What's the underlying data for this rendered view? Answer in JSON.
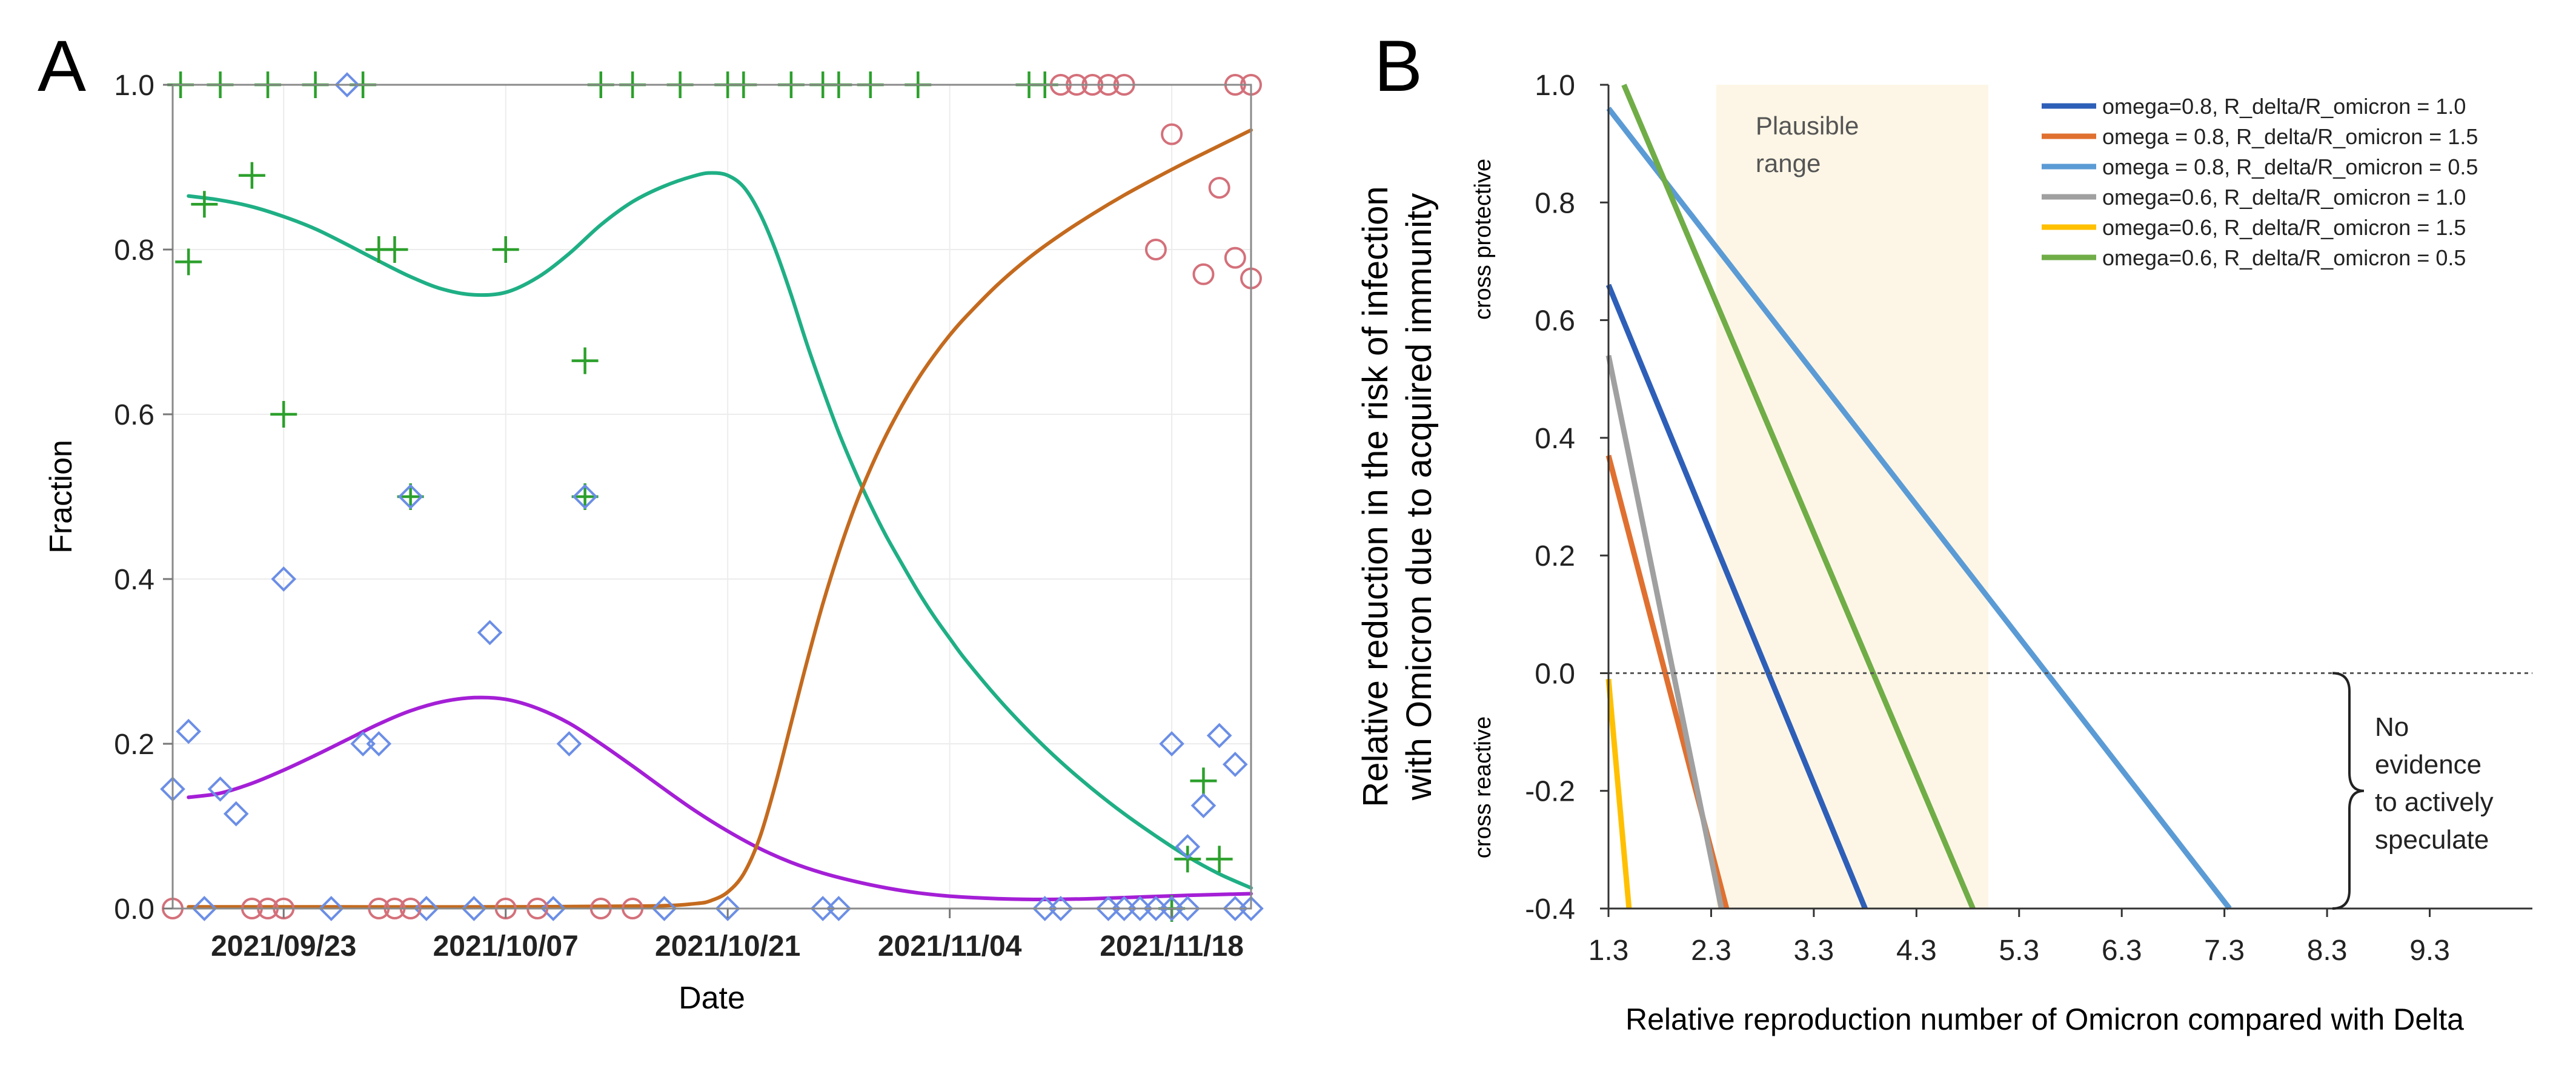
{
  "panels": {
    "a": {
      "letter": "A"
    },
    "b": {
      "letter": "B"
    }
  },
  "colors": {
    "green": "#1faf85",
    "purple": "#a41fd6",
    "orange": "#c46a1e",
    "marker_green": "#2ca02c",
    "marker_blue": "#6b8ee6",
    "marker_red": "#d4707a",
    "band": "#fdf6e6"
  },
  "chart_data": [
    {
      "id": "panel-a",
      "type": "scatter",
      "title": "",
      "xlabel": "Date",
      "ylabel": "Fraction",
      "x_unit": "days since 2021/09/16",
      "xlim": [
        0,
        68
      ],
      "ylim": [
        0,
        1
      ],
      "x_ticks": [
        {
          "x": 7,
          "label": "2021/09/23"
        },
        {
          "x": 21,
          "label": "2021/10/07"
        },
        {
          "x": 35,
          "label": "2021/10/21"
        },
        {
          "x": 49,
          "label": "2021/11/04"
        },
        {
          "x": 63,
          "label": "2021/11/18"
        }
      ],
      "y_ticks": [
        {
          "y": 0.0,
          "label": "0.0"
        },
        {
          "y": 0.2,
          "label": "0.2"
        },
        {
          "y": 0.4,
          "label": "0.4"
        },
        {
          "y": 0.6,
          "label": "0.6"
        },
        {
          "y": 0.8,
          "label": "0.8"
        },
        {
          "y": 1.0,
          "label": "1.0"
        }
      ],
      "curves": [
        {
          "name": "green-fit",
          "color": "#1faf85",
          "x": [
            1,
            3,
            5,
            7,
            9,
            11,
            13,
            15,
            17,
            19,
            21,
            23,
            25,
            27,
            29,
            31,
            33,
            34,
            35,
            36,
            37,
            38,
            39,
            40,
            41,
            42,
            43,
            44,
            45,
            46,
            47,
            48,
            49,
            50,
            52,
            54,
            56,
            58,
            60,
            62,
            64,
            66,
            68
          ],
          "y": [
            0.865,
            0.86,
            0.852,
            0.84,
            0.825,
            0.806,
            0.786,
            0.767,
            0.752,
            0.745,
            0.748,
            0.766,
            0.795,
            0.83,
            0.858,
            0.877,
            0.89,
            0.893,
            0.89,
            0.876,
            0.845,
            0.8,
            0.745,
            0.685,
            0.63,
            0.578,
            0.532,
            0.49,
            0.452,
            0.418,
            0.385,
            0.355,
            0.328,
            0.302,
            0.256,
            0.215,
            0.178,
            0.145,
            0.115,
            0.088,
            0.063,
            0.042,
            0.025
          ]
        },
        {
          "name": "purple-fit",
          "color": "#a41fd6",
          "x": [
            1,
            3,
            5,
            7,
            9,
            11,
            13,
            15,
            17,
            19,
            21,
            23,
            25,
            27,
            29,
            31,
            33,
            35,
            37,
            39,
            41,
            43,
            45,
            47,
            49,
            52,
            55,
            58,
            61,
            64,
            68
          ],
          "y": [
            0.135,
            0.14,
            0.152,
            0.168,
            0.186,
            0.205,
            0.224,
            0.24,
            0.251,
            0.256,
            0.254,
            0.243,
            0.225,
            0.2,
            0.173,
            0.145,
            0.118,
            0.094,
            0.073,
            0.056,
            0.043,
            0.033,
            0.025,
            0.019,
            0.015,
            0.012,
            0.011,
            0.012,
            0.014,
            0.016,
            0.018
          ]
        },
        {
          "name": "orange-fit",
          "color": "#c46a1e",
          "x": [
            1,
            10,
            20,
            30,
            33,
            34,
            35,
            36,
            37,
            38,
            39,
            40,
            41,
            42,
            43,
            44,
            45,
            46,
            47,
            48,
            49,
            50,
            52,
            54,
            56,
            58,
            60,
            62,
            64,
            66,
            68
          ],
          "y": [
            0.002,
            0.002,
            0.002,
            0.003,
            0.006,
            0.01,
            0.02,
            0.042,
            0.085,
            0.15,
            0.225,
            0.3,
            0.37,
            0.432,
            0.487,
            0.534,
            0.575,
            0.611,
            0.643,
            0.671,
            0.696,
            0.718,
            0.757,
            0.79,
            0.818,
            0.843,
            0.866,
            0.887,
            0.907,
            0.926,
            0.945
          ]
        }
      ],
      "series": [
        {
          "name": "plus",
          "marker": "plus",
          "color": "#2ca02c",
          "points": [
            [
              0.5,
              1
            ],
            [
              3,
              1
            ],
            [
              6,
              1
            ],
            [
              9,
              1
            ],
            [
              12,
              1
            ],
            [
              27,
              1
            ],
            [
              29,
              1
            ],
            [
              32,
              1
            ],
            [
              35,
              1
            ],
            [
              39,
              1
            ],
            [
              41,
              1
            ],
            [
              44,
              1
            ],
            [
              47,
              1
            ],
            [
              36,
              1
            ],
            [
              42,
              1
            ],
            [
              54,
              1
            ],
            [
              55,
              1
            ],
            [
              1,
              0.785
            ],
            [
              2,
              0.855
            ],
            [
              5,
              0.89
            ],
            [
              7,
              0.6
            ],
            [
              13,
              0.8
            ],
            [
              14,
              0.8
            ],
            [
              26,
              0.665
            ],
            [
              21,
              0.8
            ],
            [
              15,
              0.5
            ],
            [
              26,
              0.5
            ],
            [
              65,
              0.155
            ],
            [
              64,
              0.06
            ],
            [
              66,
              0.06
            ],
            [
              63,
              0
            ]
          ]
        },
        {
          "name": "diamond",
          "marker": "diamond",
          "color": "#6b8ee6",
          "points": [
            [
              0,
              0.145
            ],
            [
              1,
              0.215
            ],
            [
              3,
              0.145
            ],
            [
              4,
              0.115
            ],
            [
              7,
              0.4
            ],
            [
              11,
              1
            ],
            [
              12,
              0.2
            ],
            [
              13,
              0.2
            ],
            [
              15,
              0.5
            ],
            [
              20,
              0.335
            ],
            [
              26,
              0.5
            ],
            [
              25,
              0.2
            ],
            [
              63,
              0.2
            ],
            [
              64,
              0.075
            ],
            [
              65,
              0.125
            ],
            [
              66,
              0.21
            ],
            [
              67,
              0.175
            ],
            [
              2,
              0
            ],
            [
              10,
              0
            ],
            [
              16,
              0
            ],
            [
              19,
              0
            ],
            [
              24,
              0
            ],
            [
              31,
              0
            ],
            [
              35,
              0
            ],
            [
              41,
              0
            ],
            [
              42,
              0
            ],
            [
              55,
              0
            ],
            [
              56,
              0
            ],
            [
              59,
              0
            ],
            [
              60,
              0
            ],
            [
              61,
              0
            ],
            [
              62,
              0
            ],
            [
              63,
              0
            ],
            [
              64,
              0
            ],
            [
              67,
              0
            ],
            [
              68,
              0
            ]
          ]
        },
        {
          "name": "circle",
          "marker": "circle",
          "color": "#d4707a",
          "points": [
            [
              0,
              0
            ],
            [
              5,
              0
            ],
            [
              6,
              0
            ],
            [
              7,
              0
            ],
            [
              13,
              0
            ],
            [
              14,
              0
            ],
            [
              15,
              0
            ],
            [
              21,
              0
            ],
            [
              23,
              0
            ],
            [
              27,
              0
            ],
            [
              29,
              0
            ],
            [
              56,
              1
            ],
            [
              57,
              1
            ],
            [
              58,
              1
            ],
            [
              59,
              1
            ],
            [
              60,
              1
            ],
            [
              63,
              0.94
            ],
            [
              67,
              1
            ],
            [
              68,
              1
            ],
            [
              62,
              0.8
            ],
            [
              65,
              0.77
            ],
            [
              66,
              0.875
            ],
            [
              67,
              0.79
            ],
            [
              68,
              0.765
            ]
          ]
        }
      ]
    },
    {
      "id": "panel-b",
      "type": "line",
      "title": "",
      "xlabel": "Relative reproduction number of Omicron compared with Delta",
      "ylabel_line1": "Relative reduction in the risk of infection",
      "ylabel_line2": "with Omicron due to acquired immunity",
      "xlim": [
        1.3,
        10.3
      ],
      "ylim": [
        -0.4,
        1.0
      ],
      "x_ticks": [
        {
          "x": 1.3,
          "label": "1.3"
        },
        {
          "x": 2.3,
          "label": "2.3"
        },
        {
          "x": 3.3,
          "label": "3.3"
        },
        {
          "x": 4.3,
          "label": "4.3"
        },
        {
          "x": 5.3,
          "label": "5.3"
        },
        {
          "x": 6.3,
          "label": "6.3"
        },
        {
          "x": 7.3,
          "label": "7.3"
        },
        {
          "x": 8.3,
          "label": "8.3"
        },
        {
          "x": 9.3,
          "label": "9.3"
        }
      ],
      "y_ticks": [
        {
          "y": 1.0,
          "label": "1.0"
        },
        {
          "y": 0.8,
          "label": "0.8"
        },
        {
          "y": 0.6,
          "label": "0.6"
        },
        {
          "y": 0.4,
          "label": "0.4"
        },
        {
          "y": 0.2,
          "label": "0.2"
        },
        {
          "y": 0.0,
          "label": "0.0"
        },
        {
          "y": -0.2,
          "label": "-0.2"
        },
        {
          "y": -0.4,
          "label": "-0.4"
        }
      ],
      "band": {
        "x_from": 2.35,
        "x_to": 5.0,
        "label_line1": "Plausible",
        "label_line2": "range"
      },
      "zero_line": 0,
      "region_labels": {
        "upper": "cross protective",
        "lower": "cross reactive"
      },
      "annotation": {
        "lines": [
          "No",
          "evidence",
          "to actively",
          "speculate"
        ],
        "y_from": 0.0,
        "y_to": -0.4
      },
      "series": [
        {
          "name": "omega=0.8, R_delta/R_omicron = 1.0",
          "color": "#2e5fb8",
          "x": [
            1.3,
            3.8
          ],
          "y": [
            0.66,
            -0.4
          ]
        },
        {
          "name": "omega = 0.8, R_delta/R_omicron = 1.5",
          "color": "#e07030",
          "x": [
            1.3,
            2.45
          ],
          "y": [
            0.37,
            -0.4
          ]
        },
        {
          "name": "omega = 0.8, R_delta/R_omicron = 0.5",
          "color": "#5b9bd5",
          "x": [
            1.3,
            7.35
          ],
          "y": [
            0.96,
            -0.4
          ]
        },
        {
          "name": "omega=0.6, R_delta/R_omicron = 1.0",
          "color": "#a0a0a0",
          "x": [
            1.3,
            2.4
          ],
          "y": [
            0.54,
            -0.4
          ]
        },
        {
          "name": "omega=0.6, R_delta/R_omicron = 1.5",
          "color": "#ffc000",
          "x": [
            1.3,
            1.5
          ],
          "y": [
            -0.01,
            -0.4
          ]
        },
        {
          "name": "omega=0.6, R_delta/R_omicron = 0.5",
          "color": "#70ad47",
          "x": [
            1.45,
            4.85
          ],
          "y": [
            1.0,
            -0.4
          ]
        }
      ],
      "legend_position": "top-right"
    }
  ]
}
